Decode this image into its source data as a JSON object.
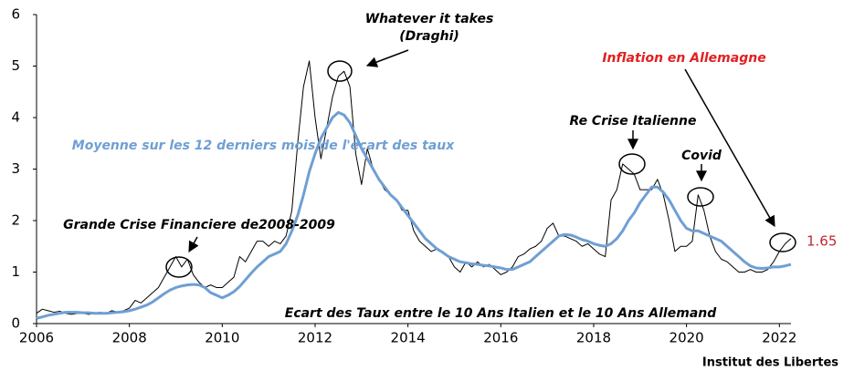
{
  "chart_data": {
    "type": "line",
    "x": [
      2006,
      2006.125,
      2006.25,
      2006.375,
      2006.5,
      2006.625,
      2006.75,
      2006.875,
      2007,
      2007.125,
      2007.25,
      2007.375,
      2007.5,
      2007.625,
      2007.75,
      2007.875,
      2008,
      2008.125,
      2008.25,
      2008.375,
      2008.5,
      2008.625,
      2008.75,
      2008.875,
      2009,
      2009.125,
      2009.25,
      2009.375,
      2009.5,
      2009.625,
      2009.75,
      2009.875,
      2010,
      2010.125,
      2010.25,
      2010.375,
      2010.5,
      2010.625,
      2010.75,
      2010.875,
      2011,
      2011.125,
      2011.25,
      2011.375,
      2011.5,
      2011.625,
      2011.75,
      2011.875,
      2012,
      2012.125,
      2012.25,
      2012.375,
      2012.5,
      2012.625,
      2012.75,
      2012.875,
      2013,
      2013.125,
      2013.25,
      2013.375,
      2013.5,
      2013.625,
      2013.75,
      2013.875,
      2014,
      2014.125,
      2014.25,
      2014.375,
      2014.5,
      2014.625,
      2014.75,
      2014.875,
      2015,
      2015.125,
      2015.25,
      2015.375,
      2015.5,
      2015.625,
      2015.75,
      2015.875,
      2016,
      2016.125,
      2016.25,
      2016.375,
      2016.5,
      2016.625,
      2016.75,
      2016.875,
      2017,
      2017.125,
      2017.25,
      2017.375,
      2017.5,
      2017.625,
      2017.75,
      2017.875,
      2018,
      2018.125,
      2018.25,
      2018.375,
      2018.5,
      2018.625,
      2018.75,
      2018.875,
      2019,
      2019.125,
      2019.25,
      2019.375,
      2019.5,
      2019.625,
      2019.75,
      2019.875,
      2020,
      2020.125,
      2020.25,
      2020.375,
      2020.5,
      2020.625,
      2020.75,
      2020.875,
      2021,
      2021.125,
      2021.25,
      2021.375,
      2021.5,
      2021.625,
      2021.75,
      2021.875,
      2022,
      2022.125,
      2022.25
    ],
    "series": [
      {
        "color": "#000000",
        "width": 1,
        "values": [
          0.2,
          0.28,
          0.25,
          0.22,
          0.24,
          0.2,
          0.18,
          0.2,
          0.2,
          0.18,
          0.2,
          0.22,
          0.2,
          0.25,
          0.22,
          0.25,
          0.3,
          0.45,
          0.4,
          0.5,
          0.6,
          0.7,
          0.9,
          1.1,
          1.3,
          1.1,
          1.25,
          0.95,
          0.8,
          0.7,
          0.75,
          0.7,
          0.7,
          0.8,
          0.9,
          1.3,
          1.2,
          1.4,
          1.6,
          1.6,
          1.5,
          1.6,
          1.55,
          1.7,
          2.2,
          3.5,
          4.6,
          5.1,
          4.0,
          3.2,
          3.8,
          4.4,
          4.8,
          4.9,
          4.6,
          3.3,
          2.7,
          3.4,
          3.0,
          2.8,
          2.6,
          2.5,
          2.4,
          2.2,
          2.2,
          1.8,
          1.6,
          1.5,
          1.4,
          1.45,
          1.4,
          1.3,
          1.1,
          1.0,
          1.2,
          1.1,
          1.2,
          1.1,
          1.15,
          1.05,
          0.95,
          1.0,
          1.1,
          1.3,
          1.35,
          1.45,
          1.5,
          1.6,
          1.85,
          1.95,
          1.7,
          1.7,
          1.65,
          1.6,
          1.5,
          1.55,
          1.45,
          1.35,
          1.3,
          2.4,
          2.6,
          3.1,
          3.0,
          2.9,
          2.6,
          2.6,
          2.6,
          2.8,
          2.5,
          2.0,
          1.4,
          1.5,
          1.5,
          1.6,
          2.5,
          2.2,
          1.7,
          1.4,
          1.25,
          1.2,
          1.1,
          1.0,
          1.0,
          1.05,
          1.0,
          1.0,
          1.05,
          1.2,
          1.4,
          1.55,
          1.65
        ]
      },
      {
        "color": "#6f9fd3",
        "width": 3,
        "values": [
          0.1,
          0.13,
          0.16,
          0.18,
          0.2,
          0.22,
          0.22,
          0.22,
          0.21,
          0.21,
          0.2,
          0.2,
          0.2,
          0.21,
          0.22,
          0.23,
          0.25,
          0.28,
          0.32,
          0.36,
          0.42,
          0.5,
          0.58,
          0.65,
          0.7,
          0.73,
          0.75,
          0.76,
          0.75,
          0.7,
          0.6,
          0.55,
          0.5,
          0.55,
          0.62,
          0.72,
          0.85,
          0.98,
          1.1,
          1.2,
          1.3,
          1.35,
          1.4,
          1.55,
          1.8,
          2.1,
          2.5,
          2.95,
          3.3,
          3.6,
          3.8,
          4.0,
          4.1,
          4.05,
          3.9,
          3.65,
          3.4,
          3.2,
          3.0,
          2.8,
          2.65,
          2.5,
          2.4,
          2.25,
          2.1,
          1.95,
          1.8,
          1.65,
          1.55,
          1.45,
          1.38,
          1.3,
          1.25,
          1.2,
          1.18,
          1.16,
          1.15,
          1.13,
          1.12,
          1.1,
          1.08,
          1.05,
          1.05,
          1.1,
          1.15,
          1.2,
          1.3,
          1.4,
          1.5,
          1.6,
          1.7,
          1.73,
          1.72,
          1.68,
          1.63,
          1.6,
          1.55,
          1.52,
          1.5,
          1.55,
          1.65,
          1.8,
          2.0,
          2.15,
          2.35,
          2.5,
          2.65,
          2.65,
          2.55,
          2.4,
          2.2,
          2.0,
          1.85,
          1.8,
          1.8,
          1.75,
          1.7,
          1.65,
          1.6,
          1.5,
          1.4,
          1.3,
          1.2,
          1.12,
          1.08,
          1.07,
          1.08,
          1.1,
          1.1,
          1.12,
          1.15
        ]
      }
    ],
    "xlim": [
      2006,
      2022.25
    ],
    "ylim": [
      0,
      6
    ],
    "xticks": [
      2006,
      2008,
      2010,
      2012,
      2014,
      2016,
      2018,
      2020,
      2022
    ],
    "yticks": [
      0,
      1,
      2,
      3,
      4,
      5,
      6
    ],
    "grid": false,
    "annotations": [
      {
        "text": "Whatever it takes",
        "color": "#000000"
      },
      {
        "text": "(Draghi)",
        "color": "#000000"
      },
      {
        "text": "Inflation en Allemagne",
        "color": "#e02020"
      },
      {
        "text": "Re Crise Italienne",
        "color": "#000000"
      },
      {
        "text": "Covid",
        "color": "#000000"
      },
      {
        "text": "Moyenne sur les 12 derniers mois de l'ecart des taux",
        "color": "#6f9fd3"
      },
      {
        "text": "Grande Crise Financiere de2008-2009",
        "color": "#000000"
      },
      {
        "text": "Ecart des Taux entre le 10 Ans Italien et le 10 Ans Allemand",
        "color": "#000000"
      },
      {
        "text": "1.65",
        "color": "#c0282f"
      }
    ],
    "source": "Institut des Libertes"
  }
}
